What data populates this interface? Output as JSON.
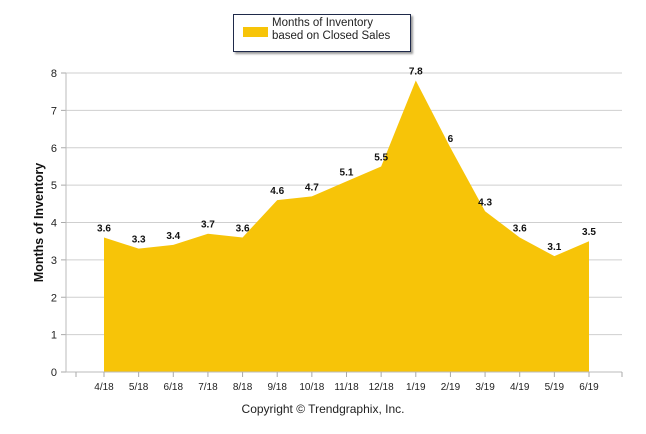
{
  "chart_data": {
    "type": "area",
    "categories": [
      "4/18",
      "5/18",
      "6/18",
      "7/18",
      "8/18",
      "9/18",
      "10/18",
      "11/18",
      "12/18",
      "1/19",
      "2/19",
      "3/19",
      "4/19",
      "5/19",
      "6/19"
    ],
    "series": [
      {
        "name": "Months of Inventory based on Closed Sales",
        "values": [
          3.6,
          3.3,
          3.4,
          3.7,
          3.6,
          4.6,
          4.7,
          5.1,
          5.5,
          7.8,
          6,
          4.3,
          3.6,
          3.1,
          3.5
        ],
        "labels": [
          "3.6",
          "3.3",
          "3.4",
          "3.7",
          "3.6",
          "4.6",
          "4.7",
          "5.1",
          "5.5",
          "7.8",
          "6",
          "4.3",
          "3.6",
          "3.1",
          "3.5"
        ]
      }
    ],
    "ylabel": "Months of Inventory",
    "xlabel": "",
    "ylim": [
      0,
      8
    ],
    "yticks": [
      "0",
      "1",
      "2",
      "3",
      "4",
      "5",
      "6",
      "7",
      "8"
    ],
    "grid": true,
    "legend_placement": "top-center",
    "fill_color": "#F7C408"
  },
  "legend": {
    "label": "Months of Inventory based on Closed Sales"
  },
  "footer": {
    "copyright": "Copyright © Trendgraphix, Inc."
  }
}
